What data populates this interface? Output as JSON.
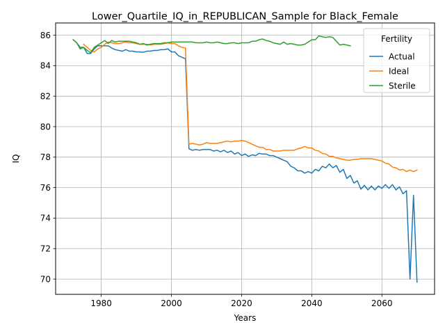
{
  "chart_data": {
    "type": "line",
    "title": "Lower_Quartile_IQ_in_REPUBLICAN_Sample for Black_Female",
    "xlabel": "Years",
    "ylabel": "IQ",
    "xlim": [
      1967,
      2075
    ],
    "ylim": [
      69.0,
      86.8
    ],
    "xticks": [
      1980,
      2000,
      2020,
      2040,
      2060
    ],
    "yticks": [
      70,
      72,
      74,
      76,
      78,
      80,
      82,
      84,
      86
    ],
    "grid": true,
    "legend": {
      "title": "Fertility",
      "position": "upper right"
    },
    "series": [
      {
        "name": "Actual",
        "color": "#1f77b4",
        "x": [
          1972,
          1973,
          1974,
          1975,
          1976,
          1977,
          1978,
          1979,
          1980,
          1981,
          1982,
          1983,
          1984,
          1985,
          1986,
          1987,
          1988,
          1989,
          1990,
          1991,
          1992,
          1993,
          1994,
          1995,
          1996,
          1997,
          1998,
          1999,
          2000,
          2001,
          2002,
          2003,
          2004,
          2005,
          2006,
          2007,
          2008,
          2009,
          2010,
          2011,
          2012,
          2013,
          2014,
          2015,
          2016,
          2017,
          2018,
          2019,
          2020,
          2021,
          2022,
          2023,
          2024,
          2025,
          2026,
          2027,
          2028,
          2029,
          2030,
          2031,
          2032,
          2033,
          2034,
          2035,
          2036,
          2037,
          2038,
          2039,
          2040,
          2041,
          2042,
          2043,
          2044,
          2045,
          2046,
          2047,
          2048,
          2049,
          2050,
          2051,
          2052,
          2053,
          2054,
          2055,
          2056,
          2057,
          2058,
          2059,
          2060,
          2061,
          2062,
          2063,
          2064,
          2065,
          2066,
          2067,
          2068,
          2069,
          2070
        ],
        "values": [
          85.7,
          85.5,
          85.2,
          85.2,
          84.8,
          84.8,
          85.1,
          85.3,
          85.3,
          85.3,
          85.3,
          85.15,
          85.05,
          85.0,
          84.95,
          85.05,
          84.95,
          84.95,
          84.9,
          84.9,
          84.88,
          84.95,
          84.95,
          85.0,
          85.0,
          85.05,
          85.05,
          85.1,
          84.9,
          84.9,
          84.65,
          84.55,
          84.45,
          78.55,
          78.45,
          78.5,
          78.45,
          78.5,
          78.5,
          78.5,
          78.4,
          78.45,
          78.35,
          78.45,
          78.3,
          78.4,
          78.2,
          78.3,
          78.1,
          78.2,
          78.05,
          78.15,
          78.1,
          78.25,
          78.2,
          78.2,
          78.1,
          78.1,
          78.0,
          77.9,
          77.8,
          77.7,
          77.4,
          77.3,
          77.1,
          77.1,
          76.95,
          77.05,
          76.95,
          77.2,
          77.1,
          77.4,
          77.3,
          77.55,
          77.3,
          77.45,
          77.0,
          77.2,
          76.6,
          76.8,
          76.3,
          76.45,
          75.9,
          76.15,
          75.85,
          76.1,
          75.85,
          76.1,
          75.95,
          76.2,
          75.95,
          76.2,
          75.85,
          76.05,
          75.6,
          75.8,
          70.0,
          75.5,
          69.8
        ]
      },
      {
        "name": "Ideal",
        "color": "#ff7f0e",
        "x": [
          1975,
          1976,
          1977,
          1978,
          1979,
          1980,
          1981,
          1982,
          1983,
          1984,
          1985,
          1986,
          1987,
          1988,
          1989,
          1990,
          1991,
          1992,
          1993,
          1994,
          1995,
          1996,
          1997,
          1998,
          1999,
          2000,
          2001,
          2002,
          2003,
          2004,
          2005,
          2006,
          2007,
          2008,
          2009,
          2010,
          2011,
          2012,
          2013,
          2014,
          2015,
          2016,
          2017,
          2018,
          2019,
          2020,
          2021,
          2022,
          2023,
          2024,
          2025,
          2026,
          2027,
          2028,
          2029,
          2030,
          2031,
          2032,
          2033,
          2034,
          2035,
          2036,
          2037,
          2038,
          2039,
          2040,
          2041,
          2042,
          2043,
          2044,
          2045,
          2046,
          2047,
          2048,
          2049,
          2050,
          2051,
          2052,
          2053,
          2054,
          2055,
          2056,
          2057,
          2058,
          2059,
          2060,
          2061,
          2062,
          2063,
          2064,
          2065,
          2066,
          2067,
          2068,
          2069,
          2070
        ],
        "values": [
          85.4,
          85.2,
          85.0,
          84.9,
          85.1,
          85.2,
          85.4,
          85.55,
          85.5,
          85.45,
          85.45,
          85.5,
          85.55,
          85.5,
          85.5,
          85.45,
          85.4,
          85.4,
          85.4,
          85.35,
          85.4,
          85.4,
          85.4,
          85.45,
          85.5,
          85.45,
          85.45,
          85.3,
          85.2,
          85.15,
          78.85,
          78.9,
          78.85,
          78.8,
          78.85,
          78.95,
          78.9,
          78.9,
          78.9,
          78.95,
          79.0,
          79.05,
          79.0,
          79.05,
          79.05,
          79.1,
          79.05,
          78.95,
          78.85,
          78.75,
          78.65,
          78.65,
          78.5,
          78.5,
          78.4,
          78.4,
          78.4,
          78.45,
          78.45,
          78.45,
          78.45,
          78.55,
          78.6,
          78.7,
          78.6,
          78.6,
          78.45,
          78.4,
          78.25,
          78.2,
          78.05,
          78.05,
          77.95,
          77.9,
          77.85,
          77.8,
          77.8,
          77.85,
          77.85,
          77.9,
          77.9,
          77.9,
          77.9,
          77.85,
          77.8,
          77.75,
          77.6,
          77.55,
          77.35,
          77.3,
          77.15,
          77.2,
          77.05,
          77.15,
          77.05,
          77.15
        ]
      },
      {
        "name": "Sterile",
        "color": "#2ca02c",
        "x": [
          1972,
          1973,
          1974,
          1975,
          1976,
          1977,
          1978,
          1979,
          1980,
          1981,
          1982,
          1983,
          1984,
          1985,
          1986,
          1987,
          1988,
          1989,
          1990,
          1991,
          1992,
          1993,
          1994,
          1995,
          1996,
          1997,
          1998,
          1999,
          2000,
          2001,
          2002,
          2003,
          2004,
          2005,
          2006,
          2007,
          2008,
          2009,
          2010,
          2011,
          2012,
          2013,
          2014,
          2015,
          2016,
          2017,
          2018,
          2019,
          2020,
          2021,
          2022,
          2023,
          2024,
          2025,
          2026,
          2027,
          2028,
          2029,
          2030,
          2031,
          2032,
          2033,
          2034,
          2035,
          2036,
          2037,
          2038,
          2039,
          2040,
          2041,
          2042,
          2043,
          2044,
          2045,
          2046,
          2047,
          2048,
          2049,
          2050,
          2051
        ],
        "values": [
          85.7,
          85.5,
          85.1,
          85.2,
          85.0,
          84.85,
          85.2,
          85.35,
          85.5,
          85.65,
          85.45,
          85.65,
          85.55,
          85.6,
          85.6,
          85.6,
          85.6,
          85.55,
          85.5,
          85.4,
          85.45,
          85.35,
          85.4,
          85.45,
          85.45,
          85.45,
          85.5,
          85.5,
          85.55,
          85.55,
          85.55,
          85.55,
          85.55,
          85.55,
          85.55,
          85.5,
          85.5,
          85.5,
          85.55,
          85.5,
          85.5,
          85.55,
          85.5,
          85.45,
          85.45,
          85.5,
          85.5,
          85.45,
          85.5,
          85.5,
          85.5,
          85.6,
          85.6,
          85.7,
          85.75,
          85.65,
          85.6,
          85.5,
          85.45,
          85.4,
          85.55,
          85.4,
          85.45,
          85.4,
          85.35,
          85.35,
          85.4,
          85.55,
          85.7,
          85.7,
          85.95,
          85.9,
          85.85,
          85.9,
          85.85,
          85.6,
          85.35,
          85.4,
          85.35,
          85.3
        ]
      }
    ]
  }
}
